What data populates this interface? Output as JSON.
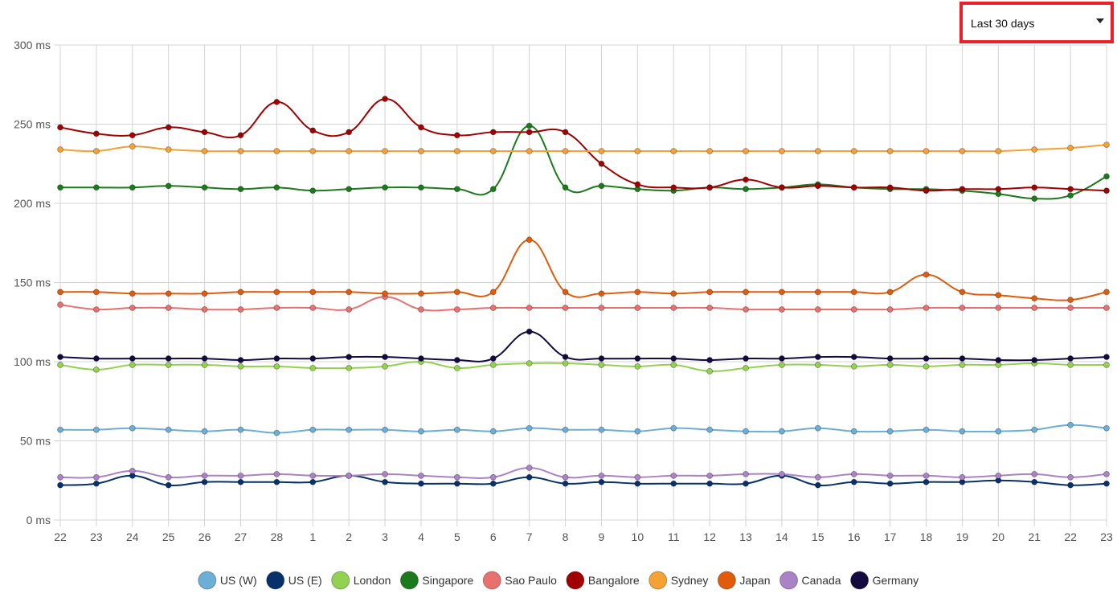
{
  "range_select": {
    "value": "Last 30 days"
  },
  "chart_data": {
    "type": "line",
    "title": "",
    "xlabel": "",
    "ylabel": "",
    "ylim": [
      0,
      300
    ],
    "y_ticks": [
      "0 ms",
      "50 ms",
      "100 ms",
      "150 ms",
      "200 ms",
      "250 ms",
      "300 ms"
    ],
    "grid": true,
    "legend_position": "bottom",
    "categories": [
      "22",
      "23",
      "24",
      "25",
      "26",
      "27",
      "28",
      "1",
      "2",
      "3",
      "4",
      "5",
      "6",
      "7",
      "8",
      "9",
      "10",
      "11",
      "12",
      "13",
      "14",
      "15",
      "16",
      "17",
      "18",
      "19",
      "20",
      "21",
      "22",
      "23"
    ],
    "series": [
      {
        "name": "US (W)",
        "color": "#6baed6",
        "values": [
          57,
          57,
          58,
          57,
          56,
          57,
          55,
          57,
          57,
          57,
          56,
          57,
          56,
          58,
          57,
          57,
          56,
          58,
          57,
          56,
          56,
          58,
          56,
          56,
          57,
          56,
          56,
          57,
          60,
          58
        ]
      },
      {
        "name": "US (E)",
        "color": "#08306b",
        "values": [
          22,
          23,
          28,
          22,
          24,
          24,
          24,
          24,
          28,
          24,
          23,
          23,
          23,
          27,
          23,
          24,
          23,
          23,
          23,
          23,
          28,
          22,
          24,
          23,
          24,
          24,
          25,
          24,
          22,
          23
        ]
      },
      {
        "name": "London",
        "color": "#93d150",
        "values": [
          98,
          95,
          98,
          98,
          98,
          97,
          97,
          96,
          96,
          97,
          100,
          96,
          98,
          99,
          99,
          98,
          97,
          98,
          94,
          96,
          98,
          98,
          97,
          98,
          97,
          98,
          98,
          99,
          98,
          98
        ]
      },
      {
        "name": "Singapore",
        "color": "#1b7a1b",
        "values": [
          210,
          210,
          210,
          211,
          210,
          209,
          210,
          208,
          209,
          210,
          210,
          209,
          209,
          249,
          210,
          211,
          209,
          208,
          210,
          209,
          210,
          212,
          210,
          209,
          209,
          208,
          206,
          203,
          205,
          217
        ]
      },
      {
        "name": "Sao Paulo",
        "color": "#e8706f",
        "values": [
          136,
          133,
          134,
          134,
          133,
          133,
          134,
          134,
          133,
          141,
          133,
          133,
          134,
          134,
          134,
          134,
          134,
          134,
          134,
          133,
          133,
          133,
          133,
          133,
          134,
          134,
          134,
          134,
          134,
          134
        ]
      },
      {
        "name": "Bangalore",
        "color": "#a00000",
        "values": [
          248,
          244,
          243,
          248,
          245,
          243,
          264,
          246,
          245,
          266,
          248,
          243,
          245,
          245,
          245,
          225,
          212,
          210,
          210,
          215,
          210,
          211,
          210,
          210,
          208,
          209,
          209,
          210,
          209,
          208
        ]
      },
      {
        "name": "Sydney",
        "color": "#f4a135",
        "values": [
          234,
          233,
          236,
          234,
          233,
          233,
          233,
          233,
          233,
          233,
          233,
          233,
          233,
          233,
          233,
          233,
          233,
          233,
          233,
          233,
          233,
          233,
          233,
          233,
          233,
          233,
          233,
          234,
          235,
          237
        ]
      },
      {
        "name": "Japan",
        "color": "#e05c0c",
        "values": [
          144,
          144,
          143,
          143,
          143,
          144,
          144,
          144,
          144,
          143,
          143,
          144,
          144,
          177,
          144,
          143,
          144,
          143,
          144,
          144,
          144,
          144,
          144,
          144,
          155,
          144,
          142,
          140,
          139,
          144
        ]
      },
      {
        "name": "Canada",
        "color": "#ab82c5",
        "values": [
          27,
          27,
          31,
          27,
          28,
          28,
          29,
          28,
          28,
          29,
          28,
          27,
          27,
          33,
          27,
          28,
          27,
          28,
          28,
          29,
          29,
          27,
          29,
          28,
          28,
          27,
          28,
          29,
          27,
          29
        ]
      },
      {
        "name": "Germany",
        "color": "#150a40",
        "values": [
          103,
          102,
          102,
          102,
          102,
          101,
          102,
          102,
          103,
          103,
          102,
          101,
          102,
          119,
          103,
          102,
          102,
          102,
          101,
          102,
          102,
          103,
          103,
          102,
          102,
          102,
          101,
          101,
          102,
          103
        ]
      }
    ]
  }
}
